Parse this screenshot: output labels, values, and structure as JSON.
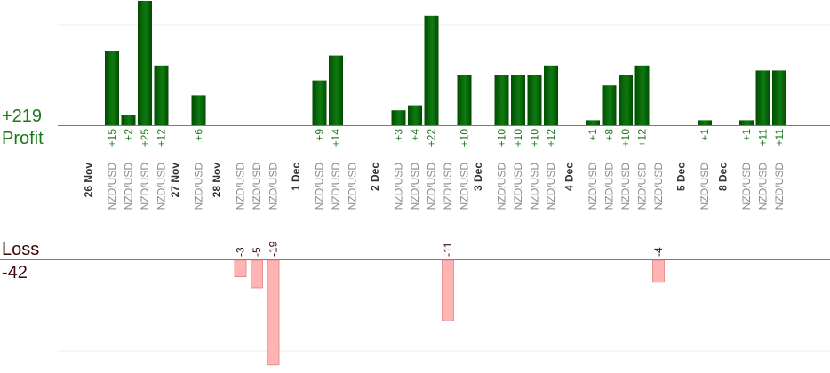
{
  "summary": {
    "profit_total": "+219",
    "profit_label": "Profit",
    "loss_label": "Loss",
    "loss_total": "-42"
  },
  "colors": {
    "profit_bar_dark": "#004d00",
    "profit_bar_light": "#107a10",
    "profit_text": "#1a7a1a",
    "loss_bar": "#ffb3b3",
    "loss_bar_edge": "#e08080",
    "loss_text": "#3a0a0a",
    "axis": "#7a7a7a",
    "grid": "#eeeeee",
    "date_text": "#333333",
    "pair_text": "#8a8a8a"
  },
  "chart_data": {
    "type": "bar",
    "ylim_profit": [
      0,
      20
    ],
    "ylim_loss": [
      -18,
      0
    ],
    "groups": [
      {
        "date": "26 Nov",
        "trades": [
          {
            "pair": "NZD/USD",
            "value": 15
          },
          {
            "pair": "NZD/USD",
            "value": 2
          },
          {
            "pair": "NZD/USD",
            "value": 25
          },
          {
            "pair": "NZD/USD",
            "value": 12
          }
        ]
      },
      {
        "date": "27 Nov",
        "trades": [
          {
            "pair": "NZD/USD",
            "value": 6
          }
        ]
      },
      {
        "date": "28 Nov",
        "trades": [
          {
            "pair": "NZD/USD",
            "value": -3
          },
          {
            "pair": "NZD/USD",
            "value": -5
          },
          {
            "pair": "NZD/USD",
            "value": -19
          }
        ]
      },
      {
        "date": "1 Dec",
        "trades": [
          {
            "pair": "NZD/USD",
            "value": 9
          },
          {
            "pair": "NZD/USD",
            "value": 14
          },
          {
            "pair": "NZD/USD",
            "value": null
          }
        ]
      },
      {
        "date": "2 Dec",
        "trades": [
          {
            "pair": "NZD/USD",
            "value": 3
          },
          {
            "pair": "NZD/USD",
            "value": 4
          },
          {
            "pair": "NZD/USD",
            "value": 22
          },
          {
            "pair": "NZD/USD",
            "value": -11
          },
          {
            "pair": "NZD/USD",
            "value": 10
          }
        ]
      },
      {
        "date": "3 Dec",
        "trades": [
          {
            "pair": "NZD/USD",
            "value": 10
          },
          {
            "pair": "NZD/USD",
            "value": 10
          },
          {
            "pair": "NZD/USD",
            "value": 10
          },
          {
            "pair": "NZD/USD",
            "value": 12
          }
        ]
      },
      {
        "date": "4 Dec",
        "trades": [
          {
            "pair": "NZD/USD",
            "value": 1
          },
          {
            "pair": "NZD/USD",
            "value": 8
          },
          {
            "pair": "NZD/USD",
            "value": 10
          },
          {
            "pair": "NZD/USD",
            "value": 12
          },
          {
            "pair": "NZD/USD",
            "value": -4
          }
        ]
      },
      {
        "date": "5 Dec",
        "trades": [
          {
            "pair": "NZD/USD",
            "value": 1
          }
        ]
      },
      {
        "date": "8 Dec",
        "trades": [
          {
            "pair": "NZD/USD",
            "value": 1
          },
          {
            "pair": "NZD/USD",
            "value": 11
          },
          {
            "pair": "NZD/USD",
            "value": 11
          }
        ]
      }
    ]
  }
}
